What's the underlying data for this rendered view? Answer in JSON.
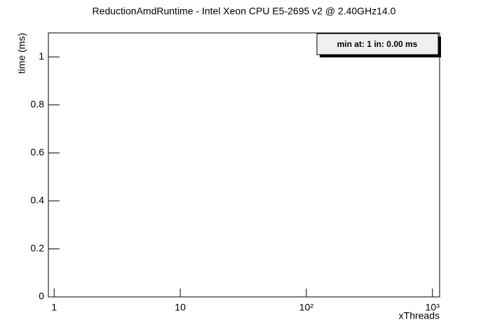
{
  "chart_data": {
    "type": "line",
    "title": "ReductionAmdRuntime - Intel Xeon CPU E5-2695 v2 @ 2.40GHz14.0",
    "x_label": "xThreads",
    "y_label": "time (ms)",
    "annotation": "min at: 1 in: 0.00 ms",
    "x_log": true,
    "xlim": [
      0.9,
      1140
    ],
    "xticks": [
      1,
      10,
      {
        "value": 100,
        "label": "10²"
      },
      {
        "value": 1000,
        "label": "10³"
      }
    ],
    "ylim": [
      0,
      1.1
    ],
    "yticks": [
      0,
      0.2,
      0.4,
      0.6,
      0.8,
      1
    ],
    "series": []
  }
}
